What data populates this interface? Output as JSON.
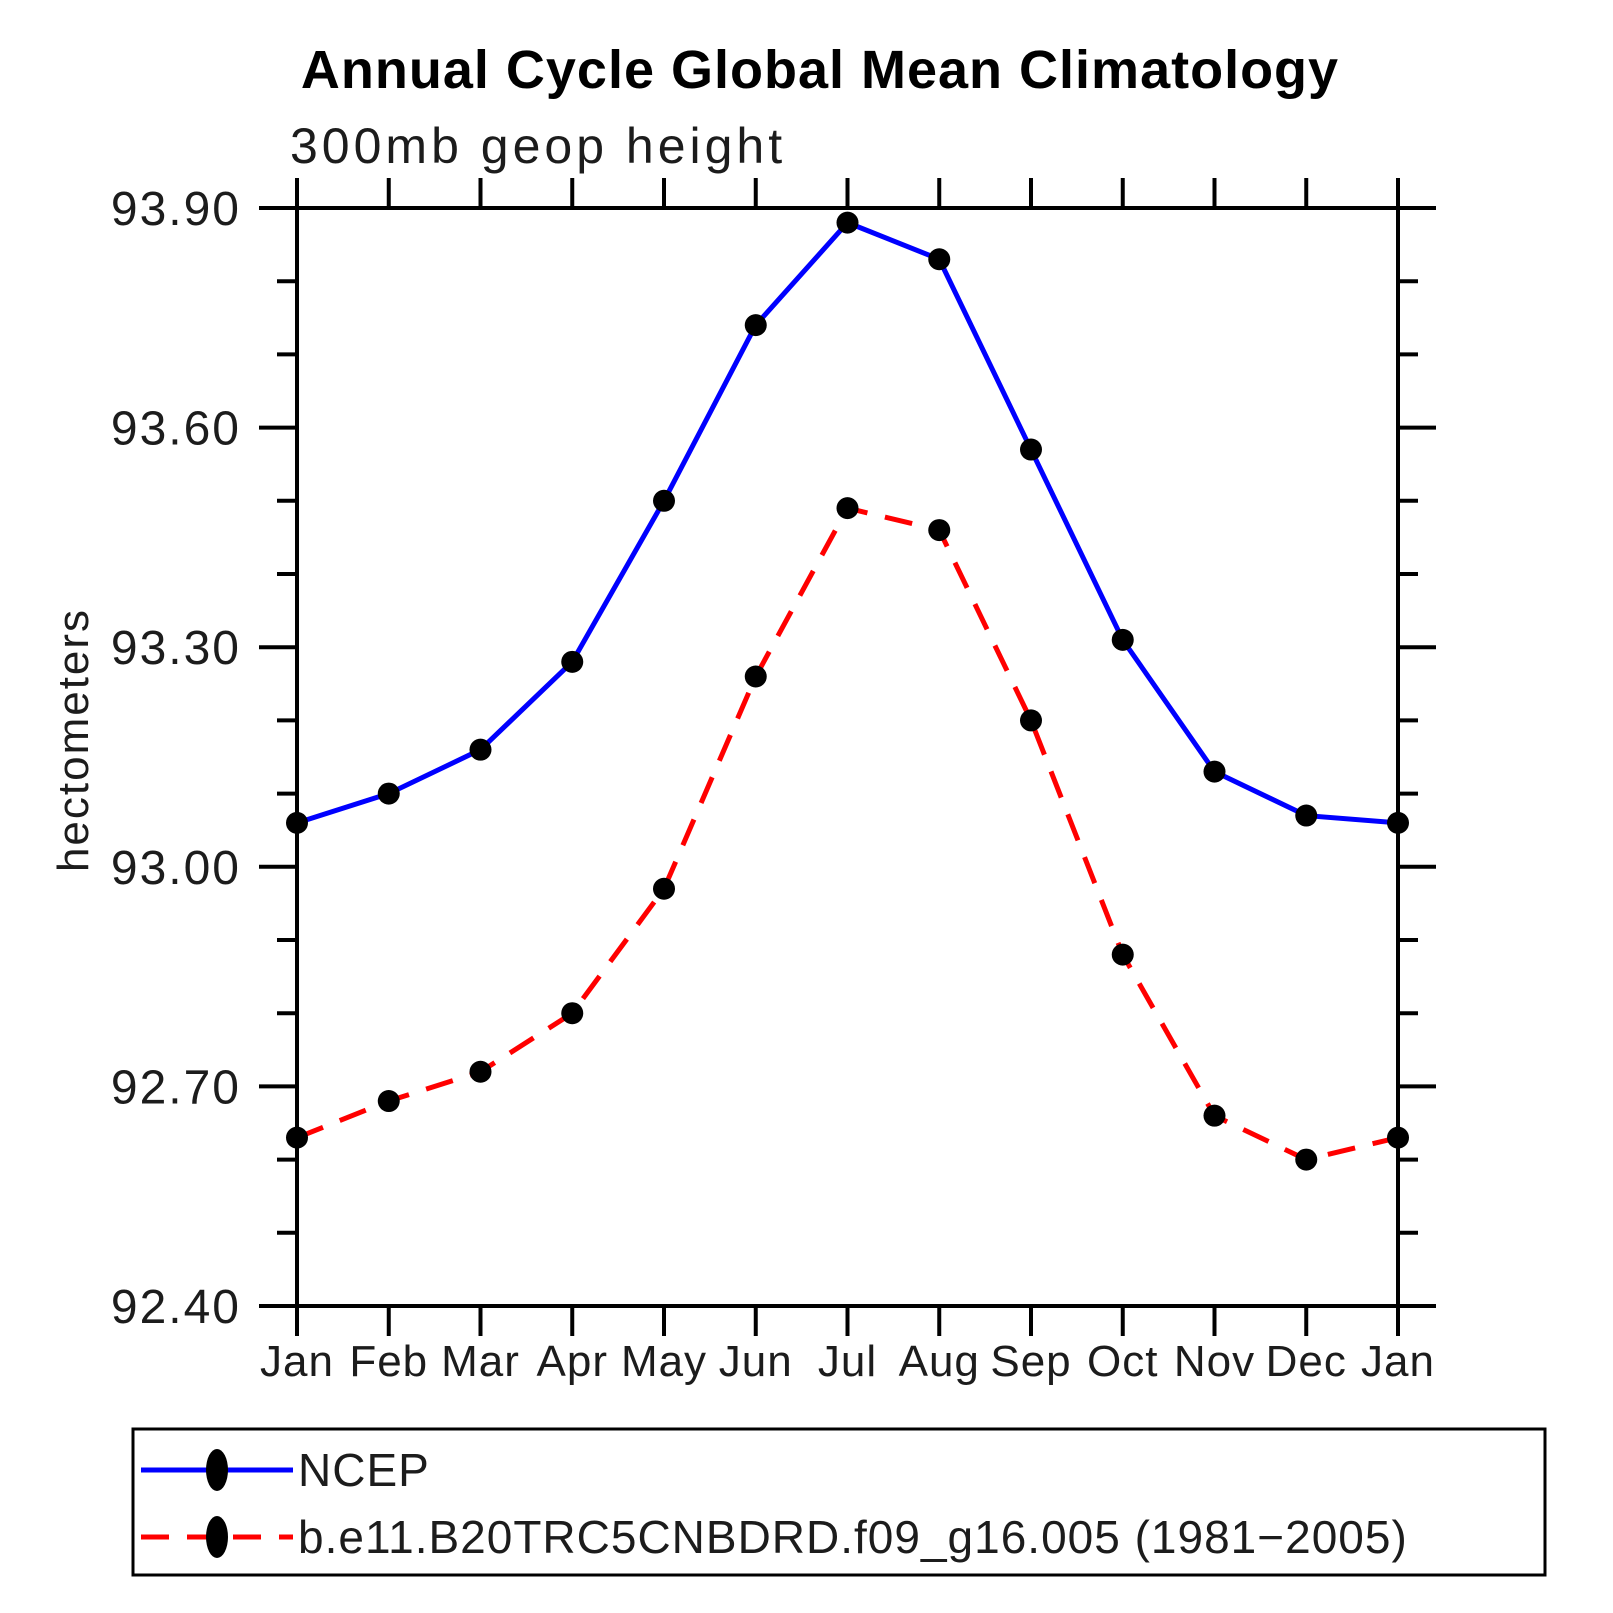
{
  "page": {
    "background_color": "#ffffff",
    "axis_color": "#000000"
  },
  "chart_data": {
    "type": "line",
    "title": "Annual Cycle Global Mean Climatology",
    "subtitle": "300mb geop height",
    "xlabel": "",
    "ylabel": "hectometers",
    "categories": [
      "Jan",
      "Feb",
      "Mar",
      "Apr",
      "May",
      "Jun",
      "Jul",
      "Aug",
      "Sep",
      "Oct",
      "Nov",
      "Dec",
      "Jan"
    ],
    "ylim": [
      92.4,
      93.9
    ],
    "ytick_major_interval": 0.3,
    "ytick_minor_interval": 0.1,
    "ytick_labels": [
      "92.40",
      "92.70",
      "93.00",
      "93.30",
      "93.60",
      "93.90"
    ],
    "grid": false,
    "legend_position": "bottom-left-box",
    "marker": "filled-circle",
    "marker_color": "#000000",
    "series": [
      {
        "name": "NCEP",
        "color": "#0000ff",
        "style": "solid",
        "values": [
          93.06,
          93.1,
          93.16,
          93.28,
          93.5,
          93.74,
          93.88,
          93.83,
          93.57,
          93.31,
          93.13,
          93.07,
          93.06
        ]
      },
      {
        "name": "b.e11.B20TRC5CNBDRD.f09_g16.005 (1981−2005)",
        "color": "#ff0000",
        "style": "dashed",
        "values": [
          92.63,
          92.68,
          92.72,
          92.8,
          92.97,
          93.26,
          93.49,
          93.46,
          93.2,
          92.88,
          92.66,
          92.6,
          92.63
        ]
      }
    ]
  }
}
